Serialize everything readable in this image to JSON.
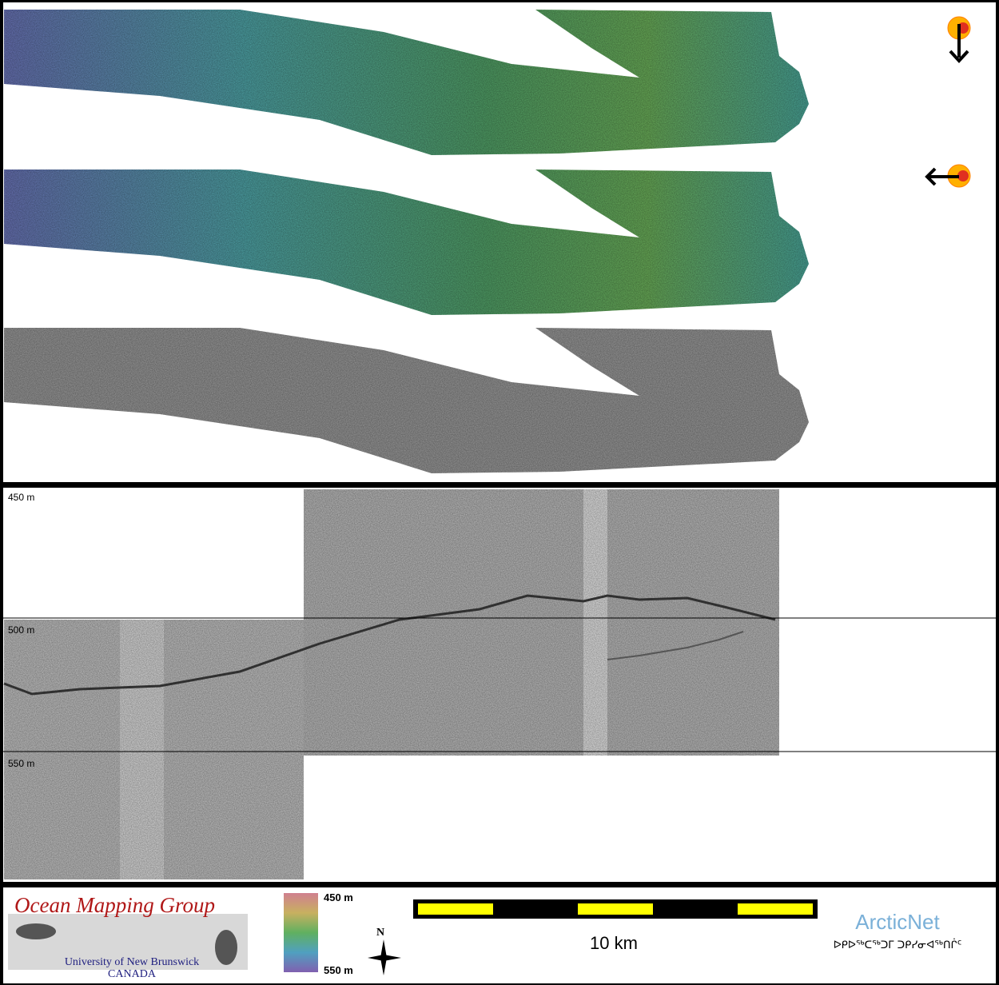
{
  "profile": {
    "depth_labels": [
      "450 m",
      "500 m",
      "550 m"
    ]
  },
  "footer": {
    "logo_title": "Ocean Mapping Group",
    "logo_university": "University of New Brunswick",
    "logo_country": "CANADA",
    "colorbar_top": "450 m",
    "colorbar_bottom": "550 m",
    "north": "N",
    "scale": "10 km",
    "partner": "ArcticNet",
    "partner_syllabics": "ᐅᑭᐅᖅᑕᖅᑐᒥ ᑐᑭᓯᓂᐊᖅᑎᒌᑦ"
  }
}
